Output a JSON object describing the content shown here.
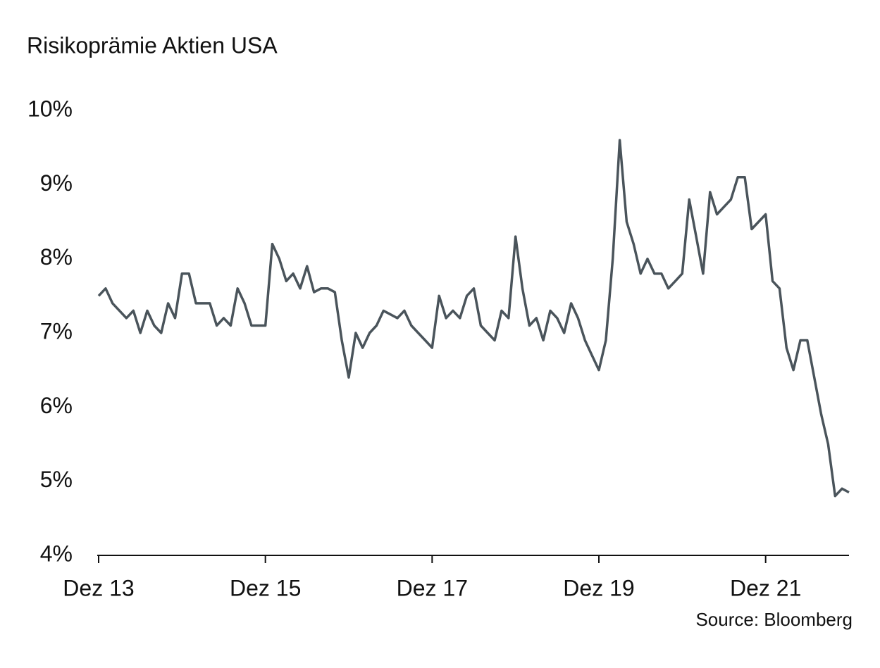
{
  "chart_data": {
    "type": "line",
    "title": "Risikoprämie Aktien USA",
    "source": "Source: Bloomberg",
    "x": [
      "2013-12",
      "2014-01",
      "2014-02",
      "2014-03",
      "2014-04",
      "2014-05",
      "2014-06",
      "2014-07",
      "2014-08",
      "2014-09",
      "2014-10",
      "2014-11",
      "2014-12",
      "2015-01",
      "2015-02",
      "2015-03",
      "2015-04",
      "2015-05",
      "2015-06",
      "2015-07",
      "2015-08",
      "2015-09",
      "2015-10",
      "2015-11",
      "2015-12",
      "2016-01",
      "2016-02",
      "2016-03",
      "2016-04",
      "2016-05",
      "2016-06",
      "2016-07",
      "2016-08",
      "2016-09",
      "2016-10",
      "2016-11",
      "2016-12",
      "2017-01",
      "2017-02",
      "2017-03",
      "2017-04",
      "2017-05",
      "2017-06",
      "2017-07",
      "2017-08",
      "2017-09",
      "2017-10",
      "2017-11",
      "2017-12",
      "2018-01",
      "2018-02",
      "2018-03",
      "2018-04",
      "2018-05",
      "2018-06",
      "2018-07",
      "2018-08",
      "2018-09",
      "2018-10",
      "2018-11",
      "2018-12",
      "2019-01",
      "2019-02",
      "2019-03",
      "2019-04",
      "2019-05",
      "2019-06",
      "2019-07",
      "2019-08",
      "2019-09",
      "2019-10",
      "2019-11",
      "2019-12",
      "2020-01",
      "2020-02",
      "2020-03",
      "2020-04",
      "2020-05",
      "2020-06",
      "2020-07",
      "2020-08",
      "2020-09",
      "2020-10",
      "2020-11",
      "2020-12",
      "2021-01",
      "2021-02",
      "2021-03",
      "2021-04",
      "2021-05",
      "2021-06",
      "2021-07",
      "2021-08",
      "2021-09",
      "2021-10",
      "2021-11",
      "2021-12",
      "2022-01",
      "2022-02",
      "2022-03",
      "2022-04",
      "2022-05",
      "2022-06",
      "2022-07",
      "2022-08",
      "2022-09",
      "2022-10",
      "2022-11",
      "2022-12"
    ],
    "series": [
      {
        "color": "#4a545b",
        "values": [
          7.5,
          7.6,
          7.4,
          7.3,
          7.2,
          7.3,
          7.0,
          7.3,
          7.1,
          7.0,
          7.4,
          7.2,
          7.8,
          7.8,
          7.4,
          7.4,
          7.4,
          7.1,
          7.2,
          7.1,
          7.6,
          7.4,
          7.1,
          7.1,
          7.1,
          8.2,
          8.0,
          7.7,
          7.8,
          7.6,
          7.9,
          7.55,
          7.6,
          7.6,
          7.55,
          6.9,
          6.4,
          7.0,
          6.8,
          7.0,
          7.1,
          7.3,
          7.25,
          7.2,
          7.3,
          7.1,
          7.0,
          6.9,
          6.8,
          7.5,
          7.2,
          7.3,
          7.2,
          7.5,
          7.6,
          7.1,
          7.0,
          6.9,
          7.3,
          7.2,
          8.3,
          7.6,
          7.1,
          7.2,
          6.9,
          7.3,
          7.2,
          7.0,
          7.4,
          7.2,
          6.9,
          6.7,
          6.5,
          6.9,
          8.0,
          9.6,
          8.5,
          8.2,
          7.8,
          8.0,
          7.8,
          7.8,
          7.6,
          7.7,
          7.8,
          8.8,
          8.3,
          7.8,
          8.9,
          8.6,
          8.7,
          8.8,
          9.1,
          9.1,
          8.4,
          8.5,
          8.6,
          7.7,
          7.6,
          6.8,
          6.5,
          6.9,
          6.9,
          6.4,
          5.9,
          5.5,
          4.8,
          4.9,
          4.85
        ]
      }
    ],
    "xlim": [
      "2013-12",
      "2022-12"
    ],
    "xticks": [
      {
        "value": "2013-12",
        "label": "Dez 13"
      },
      {
        "value": "2015-12",
        "label": "Dez 15"
      },
      {
        "value": "2017-12",
        "label": "Dez 17"
      },
      {
        "value": "2019-12",
        "label": "Dez 19"
      },
      {
        "value": "2021-12",
        "label": "Dez 21"
      }
    ],
    "ylim": [
      4,
      10
    ],
    "yticks": [
      {
        "value": 4,
        "label": "4%"
      },
      {
        "value": 5,
        "label": "5%"
      },
      {
        "value": 6,
        "label": "6%"
      },
      {
        "value": 7,
        "label": "7%"
      },
      {
        "value": 8,
        "label": "8%"
      },
      {
        "value": 9,
        "label": "9%"
      },
      {
        "value": 10,
        "label": "10%"
      }
    ],
    "grid": false
  }
}
